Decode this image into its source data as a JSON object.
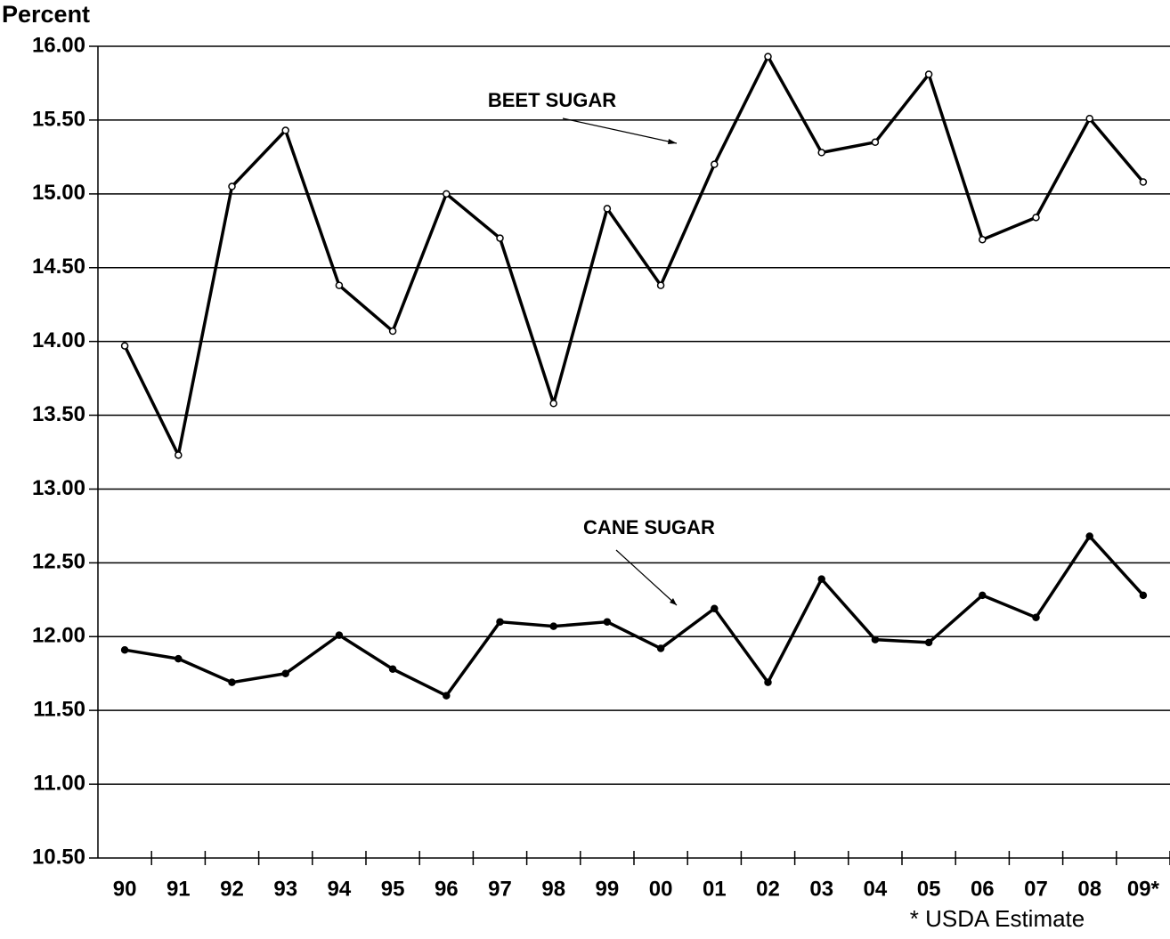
{
  "chart_data": {
    "type": "line",
    "y_label": "Percent",
    "categories": [
      "90",
      "91",
      "92",
      "93",
      "94",
      "95",
      "96",
      "97",
      "98",
      "99",
      "00",
      "01",
      "02",
      "03",
      "04",
      "05",
      "06",
      "07",
      "08",
      "09*"
    ],
    "series": [
      {
        "name": "BEET SUGAR",
        "color": "#000000",
        "marker": "hollow",
        "values": [
          13.97,
          13.23,
          15.05,
          15.43,
          14.38,
          14.07,
          15.0,
          14.7,
          13.58,
          14.9,
          14.38,
          15.2,
          15.93,
          15.28,
          15.35,
          15.81,
          14.69,
          14.84,
          15.51,
          15.08
        ]
      },
      {
        "name": "CANE SUGAR",
        "color": "#000000",
        "marker": "filled",
        "values": [
          11.91,
          11.85,
          11.69,
          11.75,
          12.01,
          11.78,
          11.6,
          12.1,
          12.07,
          12.1,
          11.92,
          12.19,
          11.69,
          12.39,
          11.98,
          11.96,
          12.28,
          12.13,
          12.68,
          12.28
        ]
      }
    ],
    "ylim": [
      10.5,
      16.0
    ],
    "yticks": [
      {
        "value": 10.5,
        "label": "10.50"
      },
      {
        "value": 11.0,
        "label": "11.00"
      },
      {
        "value": 11.5,
        "label": "11.50"
      },
      {
        "value": 12.0,
        "label": "12.00"
      },
      {
        "value": 12.5,
        "label": "12.50"
      },
      {
        "value": 13.0,
        "label": "13.00"
      },
      {
        "value": 13.5,
        "label": "13.50"
      },
      {
        "value": 14.0,
        "label": "14.00"
      },
      {
        "value": 14.5,
        "label": "14.50"
      },
      {
        "value": 15.0,
        "label": "15.00"
      },
      {
        "value": 15.5,
        "label": "15.50"
      },
      {
        "value": 16.0,
        "label": "16.00"
      }
    ],
    "grid": true,
    "footnote": "* USDA Estimate"
  }
}
